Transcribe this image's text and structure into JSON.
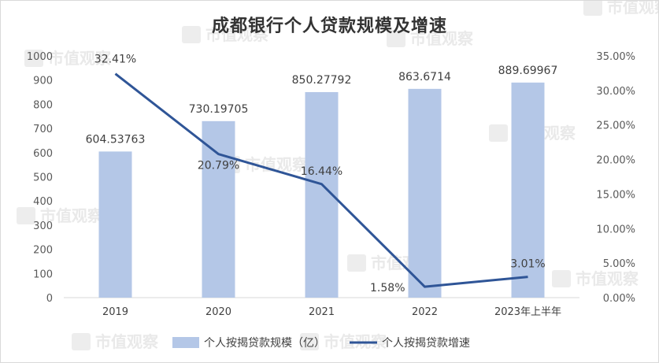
{
  "chart_data": {
    "type": "bar",
    "title": "成都银行个人贷款规模及增速",
    "categories": [
      "2019",
      "2020",
      "2021",
      "2022",
      "2023年上半年"
    ],
    "series": [
      {
        "name": "个人按揭贷款规模（亿）",
        "type": "bar",
        "axis": "left",
        "color": "#b4c7e7",
        "values": [
          604.53763,
          730.19705,
          850.27792,
          863.6714,
          889.69967
        ],
        "labels": [
          "604.53763",
          "730.19705",
          "850.27792",
          "863.6714",
          "889.69967"
        ]
      },
      {
        "name": "个人按揭贷款增速",
        "type": "line",
        "axis": "right",
        "color": "#2f5597",
        "values": [
          32.41,
          20.79,
          16.44,
          1.58,
          3.01
        ],
        "labels": [
          "32.41%",
          "20.79%",
          "16.44%",
          "1.58%",
          "3.01%"
        ]
      }
    ],
    "y_left": {
      "ylim": [
        0,
        1000
      ],
      "ticks": [
        "0",
        "100",
        "200",
        "300",
        "400",
        "500",
        "600",
        "700",
        "800",
        "900",
        "1000"
      ]
    },
    "y_right": {
      "ylim": [
        0,
        35
      ],
      "ticks": [
        "0.00%",
        "5.00%",
        "10.00%",
        "15.00%",
        "20.00%",
        "25.00%",
        "30.00%",
        "35.00%"
      ]
    },
    "grid": false,
    "legend": "bottom"
  },
  "watermark": {
    "text": "市值观察",
    "icon": "watermark-logo-icon"
  }
}
